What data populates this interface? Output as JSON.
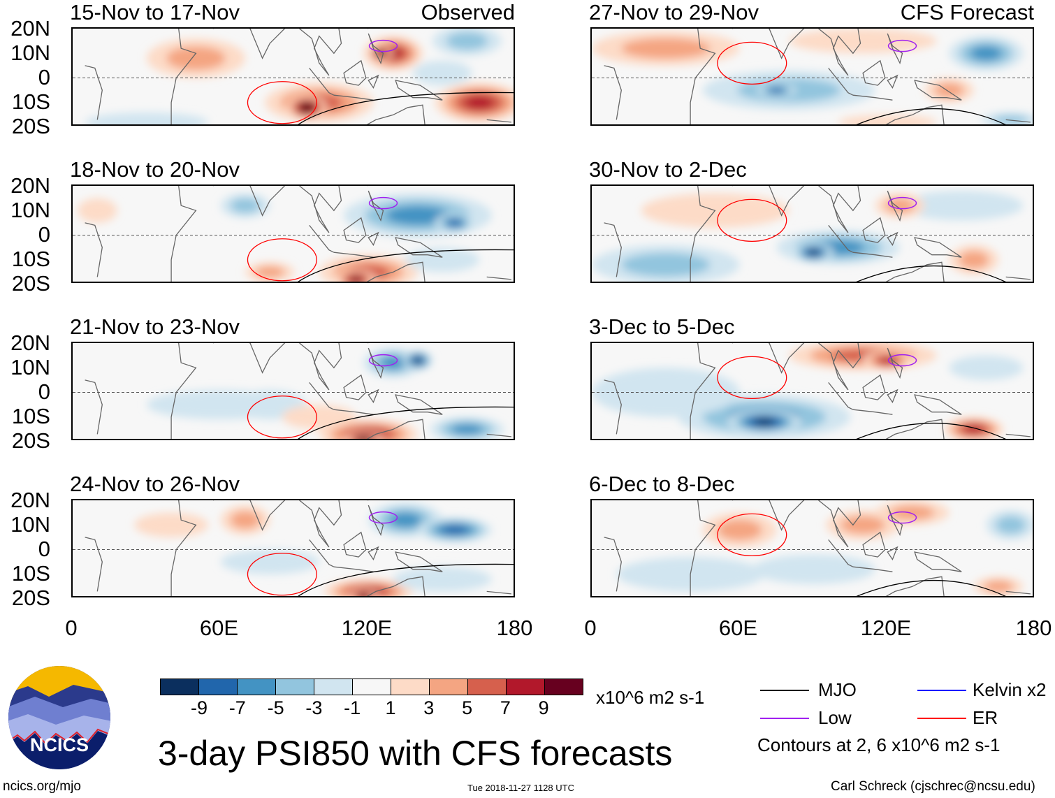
{
  "panels": [
    {
      "title": "15-Nov to 17-Nov",
      "right_label": "Observed"
    },
    {
      "title": "18-Nov to 20-Nov"
    },
    {
      "title": "21-Nov to 23-Nov"
    },
    {
      "title": "24-Nov to 26-Nov"
    },
    {
      "title": "27-Nov to 29-Nov",
      "right_label": "CFS Forecast"
    },
    {
      "title": "30-Nov to 2-Dec"
    },
    {
      "title": "3-Dec to 5-Dec"
    },
    {
      "title": "6-Dec to 8-Dec"
    }
  ],
  "y_ticks": [
    "20N",
    "10N",
    "0",
    "10S",
    "20S"
  ],
  "x_ticks": [
    "0",
    "60E",
    "120E",
    "180"
  ],
  "colorbar": {
    "labels": [
      "-9",
      "-7",
      "-5",
      "-3",
      "-1",
      "1",
      "3",
      "5",
      "7",
      "9"
    ],
    "colors": [
      "#0b2f5e",
      "#2166ac",
      "#4393c3",
      "#92c5de",
      "#d1e5f0",
      "#f7f7f7",
      "#fddbc7",
      "#f4a582",
      "#d6604d",
      "#b2182b",
      "#67001f"
    ],
    "units": "x10^6 m2 s-1"
  },
  "legend": {
    "items": [
      {
        "label": "MJO",
        "color": "#000000"
      },
      {
        "label": "Kelvin x2",
        "color": "#0000ff"
      },
      {
        "label": "Low",
        "color": "#a020f0"
      },
      {
        "label": "ER",
        "color": "#ff0000"
      }
    ],
    "note": "Contours at 2, 6 x10^6 m2 s-1"
  },
  "title": "3-day PSI850 with CFS forecasts",
  "logo_text": "NCICS",
  "footer": {
    "left": "ncics.org/mjo",
    "center": "Tue 2018-11-27 1128 UTC",
    "right": "Carl Schreck (cjschrec@ncsu.edu)"
  }
}
